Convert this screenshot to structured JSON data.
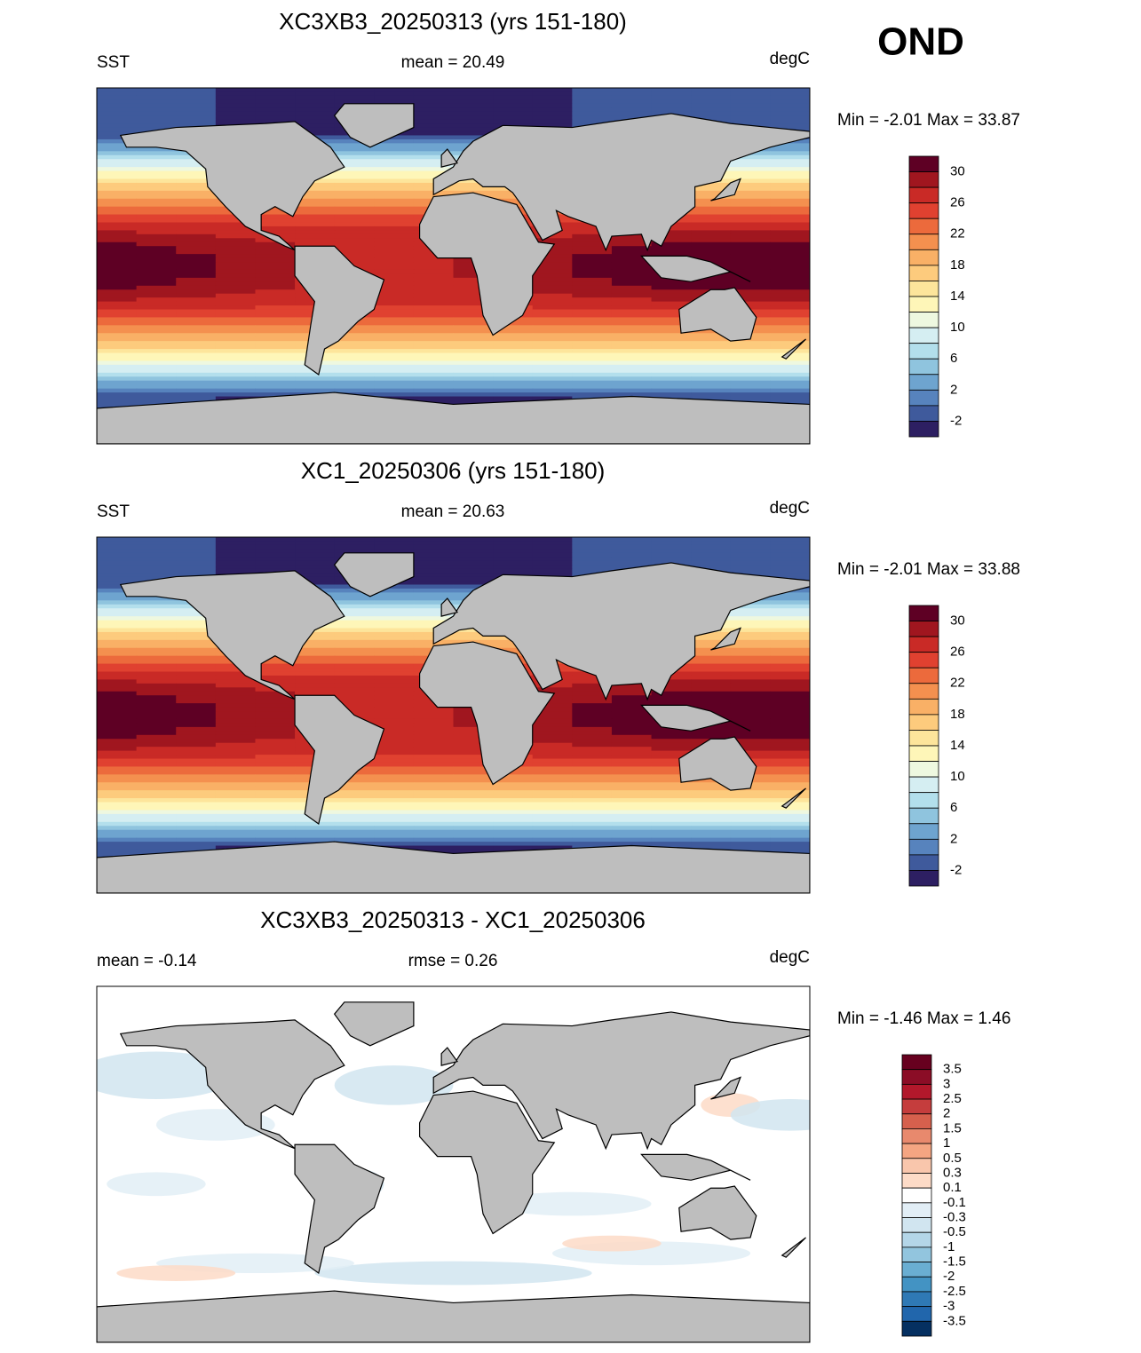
{
  "header": {
    "season": "OND"
  },
  "panels": [
    {
      "title": "XC3XB3_20250313 (yrs 151-180)",
      "left": "SST",
      "center": "mean =  20.49",
      "right": "degC",
      "range": "Min =  -2.01 Max =  33.87",
      "colorbar": {
        "labels": [
          "30",
          "26",
          "22",
          "18",
          "14",
          "10",
          "6",
          "2",
          "-2"
        ]
      }
    },
    {
      "title": "XC1_20250306 (yrs 151-180)",
      "left": "SST",
      "center": "mean =  20.63",
      "right": "degC",
      "range": "Min =  -2.01 Max =  33.88",
      "colorbar": {
        "labels": [
          "30",
          "26",
          "22",
          "18",
          "14",
          "10",
          "6",
          "2",
          "-2"
        ]
      }
    },
    {
      "title": "XC3XB3_20250313 - XC1_20250306",
      "left": "mean =  -0.14",
      "center": "rmse =   0.26",
      "right": "degC",
      "range": "Min =  -1.46 Max =   1.46",
      "colorbar": {
        "labels": [
          "3.5",
          "3",
          "2.5",
          "2",
          "1.5",
          "1",
          "0.5",
          "0.3",
          "0.1",
          "-0.1",
          "-0.3",
          "-0.5",
          "-1",
          "-1.5",
          "-2",
          "-2.5",
          "-3",
          "-3.5"
        ]
      }
    }
  ]
}
